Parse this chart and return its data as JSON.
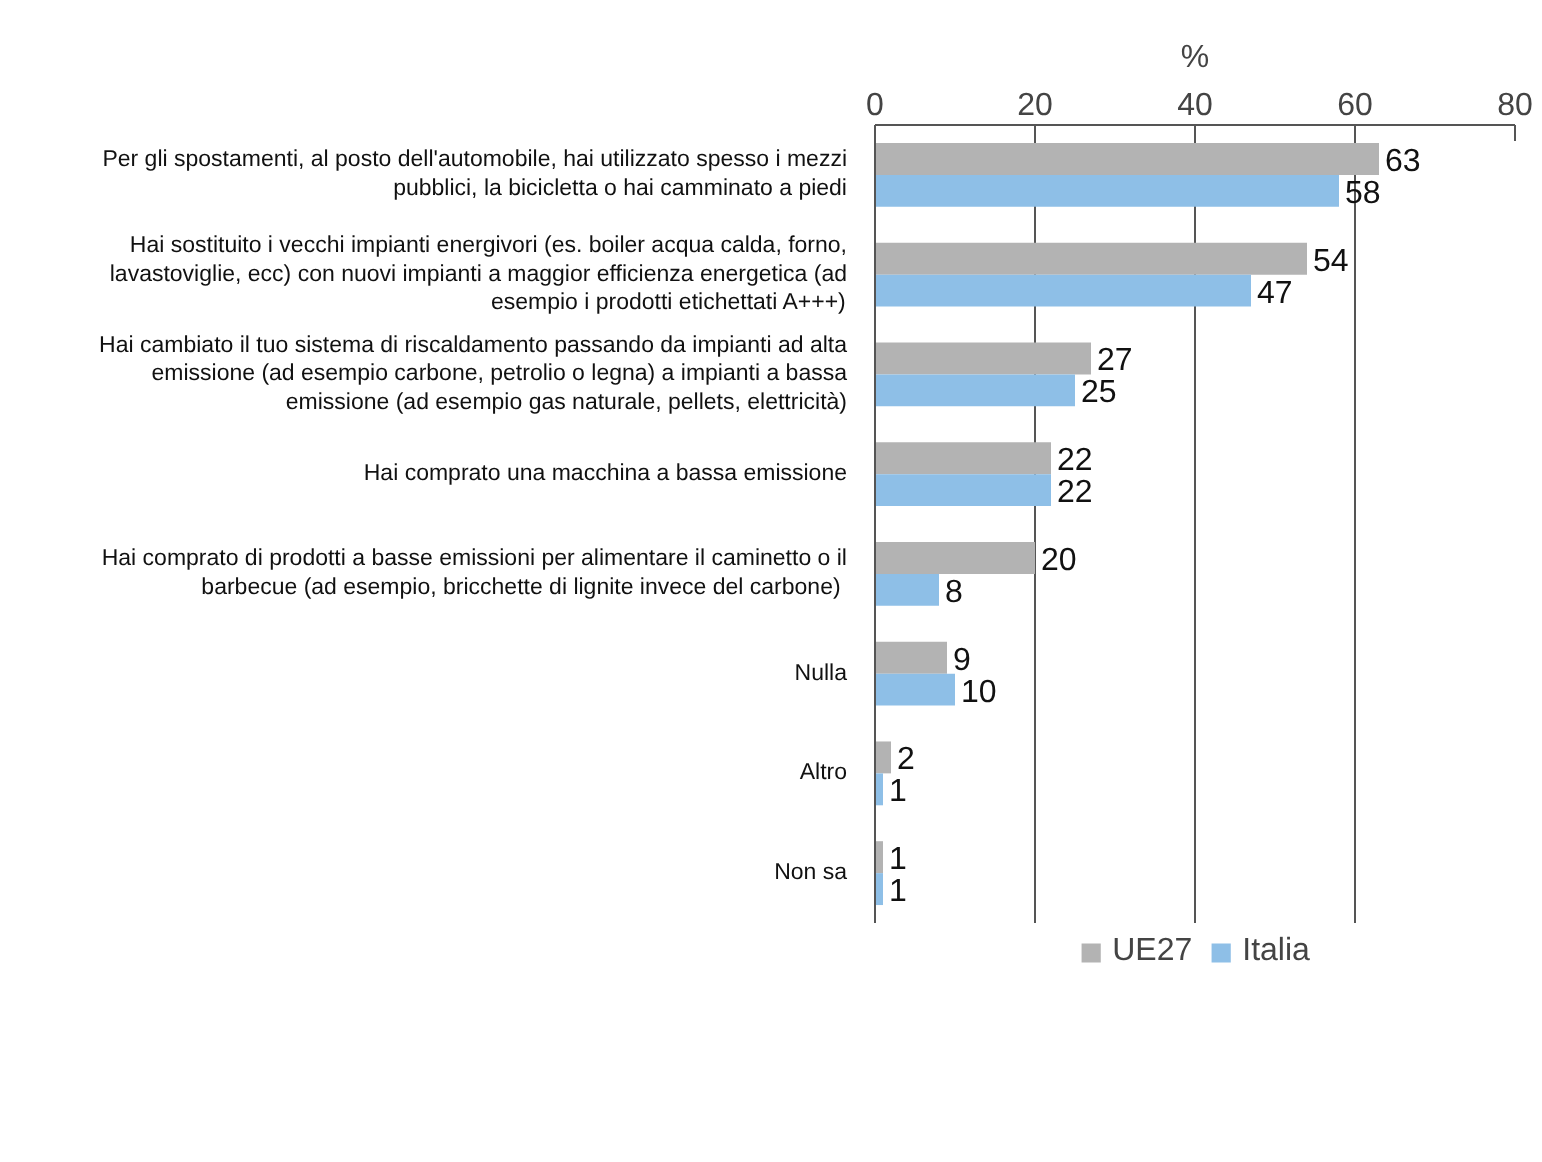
{
  "chart_data": {
    "type": "bar",
    "orientation": "horizontal",
    "xlabel": "%",
    "categories": [
      "Per gli spostamenti, al posto dell'automobile, hai utilizzato spesso i mezzi\npubblici, la bicicletta o hai camminato a piedi",
      "Hai sostituito i vecchi impianti energivori (es. boiler acqua calda, forno,\nlavastoviglie, ecc) con nuovi impianti a maggior efficienza energetica (ad\nesempio i prodotti etichettati A+++)",
      "Hai cambiato il tuo sistema di riscaldamento passando da impianti ad alta\nemissione (ad esempio carbone, petrolio o legna) a impianti a bassa\nemissione (ad esempio gas naturale, pellets, elettricità)",
      "Hai comprato una macchina a bassa emissione",
      "Hai comprato di prodotti a basse emissioni per alimentare il caminetto o il\nbarbecue (ad esempio,  bricchette di lignite invece del carbone)",
      "Nulla",
      "Altro",
      "Non sa"
    ],
    "series": [
      {
        "name": "UE27",
        "color": "#b3b3b3",
        "values": [
          63,
          54,
          27,
          22,
          20,
          9,
          2,
          1
        ]
      },
      {
        "name": "Italia",
        "color": "#8ebfe7",
        "values": [
          58,
          47,
          25,
          22,
          8,
          10,
          1,
          1
        ]
      }
    ],
    "xlim": [
      0,
      80
    ],
    "xticks": [
      0,
      20,
      40,
      60,
      80
    ],
    "grid": "x",
    "legend": "bottom",
    "data_labels": true
  }
}
